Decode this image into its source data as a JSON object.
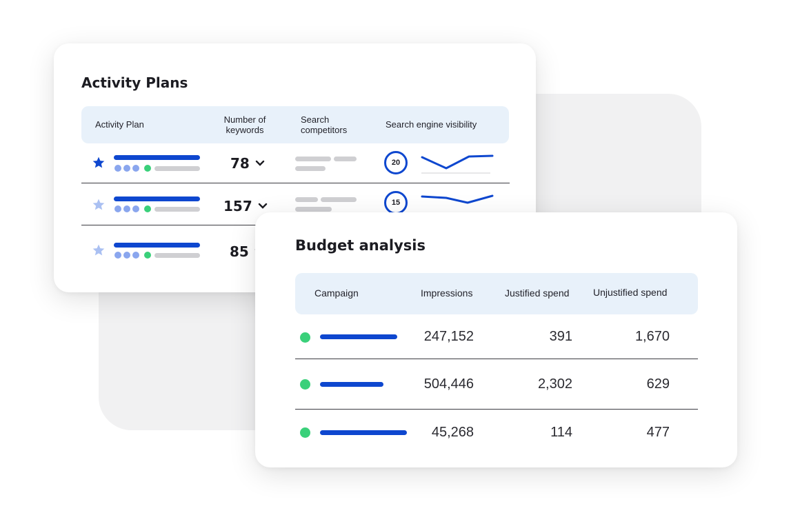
{
  "activity_plans": {
    "title": "Activity Plans",
    "headers": {
      "activity_plan": "Activity Plan",
      "number_of_keywords": "Number of keywords",
      "search_competitors": "Search competitors",
      "search_engine_visibility": "Search engine visibility"
    },
    "rows": [
      {
        "keywords": "78",
        "visibility": "20",
        "starred": true
      },
      {
        "keywords": "157",
        "visibility": "15",
        "starred": false
      },
      {
        "keywords": "85",
        "starred": false
      }
    ]
  },
  "budget_analysis": {
    "title": "Budget analysis",
    "headers": {
      "campaign": "Campaign",
      "impressions": "Impressions",
      "justified_spend": "Justified spend",
      "unjustified_spend": "Unjustified spend"
    },
    "rows": [
      {
        "impressions": "247,152",
        "justified": "391",
        "unjustified": "1,670"
      },
      {
        "impressions": "504,446",
        "justified": "2,302",
        "unjustified": "629"
      },
      {
        "impressions": "45,268",
        "justified": "114",
        "unjustified": "477"
      }
    ]
  },
  "colors": {
    "accent": "#0e47cf",
    "status_green": "#3ad07a",
    "header_bg": "#e8f1fa",
    "star_inactive": "#aac0f2"
  },
  "icons": {
    "star": "star-icon",
    "chevron": "chevron-down-icon",
    "status_dot": "status-dot-icon"
  }
}
